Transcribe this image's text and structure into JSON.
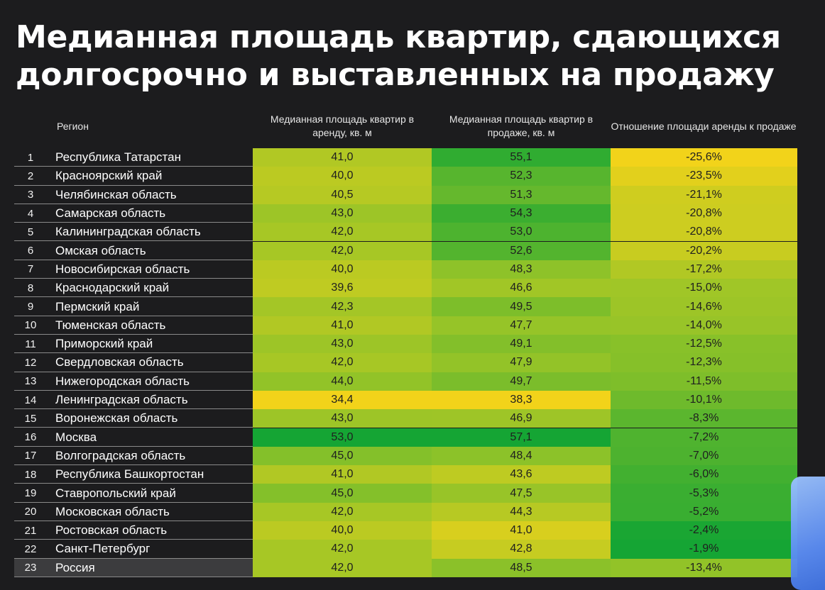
{
  "title_lines": [
    "Медианная площадь квартир, сдающихся",
    "долгосрочно и выставленных на продажу"
  ],
  "headers": {
    "region": "Регион",
    "rent": "Медианная площадь квартир в аренду, кв. м",
    "sale": "Медианная площадь квартир в продаже, кв. м",
    "ratio": "Отношение площади аренды к продаже"
  },
  "colors": {
    "background": "#1c1c1e",
    "low": "#f2d31a",
    "high": "#15a534"
  },
  "chart_data": {
    "type": "table",
    "columns": [
      "",
      "Регион",
      "Медианная площадь квартир в аренду, кв. м",
      "Медианная площадь квартир в продаже, кв. м",
      "Отношение площади аренды к продаже"
    ],
    "rows": [
      {
        "n": "1",
        "region": "Республика Татарстан",
        "rent": "41,0",
        "sale": "55,1",
        "ratio": "-25,6%"
      },
      {
        "n": "2",
        "region": "Красноярский край",
        "rent": "40,0",
        "sale": "52,3",
        "ratio": "-23,5%"
      },
      {
        "n": "3",
        "region": "Челябинская область",
        "rent": "40,5",
        "sale": "51,3",
        "ratio": "-21,1%"
      },
      {
        "n": "4",
        "region": "Самарская область",
        "rent": "43,0",
        "sale": "54,3",
        "ratio": "-20,8%"
      },
      {
        "n": "5",
        "region": "Калининградская область",
        "rent": "42,0",
        "sale": "53,0",
        "ratio": "-20,8%"
      },
      {
        "n": "6",
        "region": "Омская область",
        "rent": "42,0",
        "sale": "52,6",
        "ratio": "-20,2%"
      },
      {
        "n": "7",
        "region": "Новосибирская область",
        "rent": "40,0",
        "sale": "48,3",
        "ratio": "-17,2%"
      },
      {
        "n": "8",
        "region": "Краснодарский край",
        "rent": "39,6",
        "sale": "46,6",
        "ratio": "-15,0%"
      },
      {
        "n": "9",
        "region": "Пермский край",
        "rent": "42,3",
        "sale": "49,5",
        "ratio": "-14,6%"
      },
      {
        "n": "10",
        "region": "Тюменская область",
        "rent": "41,0",
        "sale": "47,7",
        "ratio": "-14,0%"
      },
      {
        "n": "11",
        "region": "Приморский край",
        "rent": "43,0",
        "sale": "49,1",
        "ratio": "-12,5%"
      },
      {
        "n": "12",
        "region": "Свердловская область",
        "rent": "42,0",
        "sale": "47,9",
        "ratio": "-12,3%"
      },
      {
        "n": "13",
        "region": "Нижегородская область",
        "rent": "44,0",
        "sale": "49,7",
        "ratio": "-11,5%"
      },
      {
        "n": "14",
        "region": "Ленинградская область",
        "rent": "34,4",
        "sale": "38,3",
        "ratio": "-10,1%"
      },
      {
        "n": "15",
        "region": "Воронежская область",
        "rent": "43,0",
        "sale": "46,9",
        "ratio": "-8,3%"
      },
      {
        "n": "16",
        "region": "Москва",
        "rent": "53,0",
        "sale": "57,1",
        "ratio": "-7,2%"
      },
      {
        "n": "17",
        "region": "Волгоградская область",
        "rent": "45,0",
        "sale": "48,4",
        "ratio": "-7,0%"
      },
      {
        "n": "18",
        "region": "Республика Башкортостан",
        "rent": "41,0",
        "sale": "43,6",
        "ratio": "-6,0%"
      },
      {
        "n": "19",
        "region": "Ставропольский край",
        "rent": "45,0",
        "sale": "47,5",
        "ratio": "-5,3%"
      },
      {
        "n": "20",
        "region": "Московская область",
        "rent": "42,0",
        "sale": "44,3",
        "ratio": "-5,2%"
      },
      {
        "n": "21",
        "region": "Ростовская область",
        "rent": "40,0",
        "sale": "41,0",
        "ratio": "-2,4%"
      },
      {
        "n": "22",
        "region": "Санкт-Петербург",
        "rent": "42,0",
        "sale": "42,8",
        "ratio": "-1,9%"
      },
      {
        "n": "23",
        "region": "Россия",
        "rent": "42,0",
        "sale": "48,5",
        "ratio": "-13,4%"
      }
    ]
  }
}
